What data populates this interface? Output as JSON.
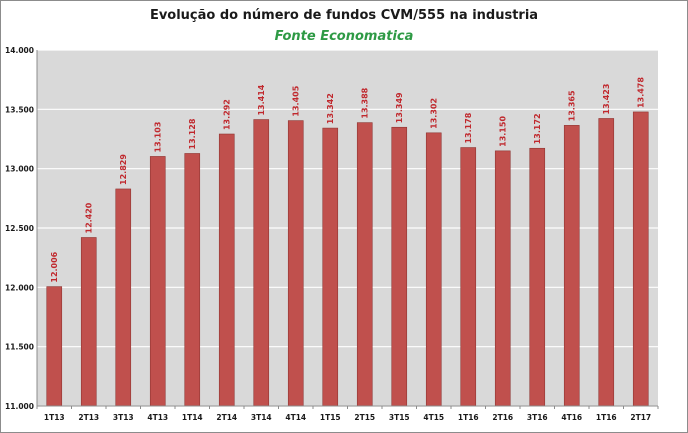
{
  "chart_data": {
    "type": "bar",
    "title": "Evolução do número de fundos CVM/555 na industria",
    "subtitle": "Fonte Economatica",
    "categories": [
      "1T13",
      "2T13",
      "3T13",
      "4T13",
      "1T14",
      "2T14",
      "3T14",
      "4T14",
      "1T15",
      "2T15",
      "3T15",
      "4T15",
      "1T16",
      "2T16",
      "3T16",
      "4T16",
      "1T16",
      "2T17"
    ],
    "values": [
      12006,
      12420,
      12829,
      13103,
      13128,
      13292,
      13414,
      13405,
      13342,
      13388,
      13349,
      13302,
      13178,
      13150,
      13172,
      13365,
      13423,
      13478
    ],
    "data_labels": [
      "12.006",
      "12.420",
      "12.829",
      "13.103",
      "13.128",
      "13.292",
      "13.414",
      "13.405",
      "13.342",
      "13.388",
      "13.349",
      "13.302",
      "13.178",
      "13.150",
      "13.172",
      "13.365",
      "13.423",
      "13.478"
    ],
    "ylim": [
      11000,
      14000
    ],
    "yticks": [
      11000,
      11500,
      12000,
      12500,
      13000,
      13500,
      14000
    ],
    "ytick_labels": [
      "11.000",
      "11.500",
      "12.000",
      "12.500",
      "13.000",
      "13.500",
      "14.000"
    ],
    "xlabel": "",
    "ylabel": "",
    "grid": true,
    "legend": "none",
    "colors": {
      "bar": "#c0504d",
      "bar_edge": "#8f3532",
      "label": "#c0282d",
      "plot_bg": "#d9d9d9",
      "grid": "#ffffff",
      "axis_text": "#1a1a1a"
    }
  }
}
